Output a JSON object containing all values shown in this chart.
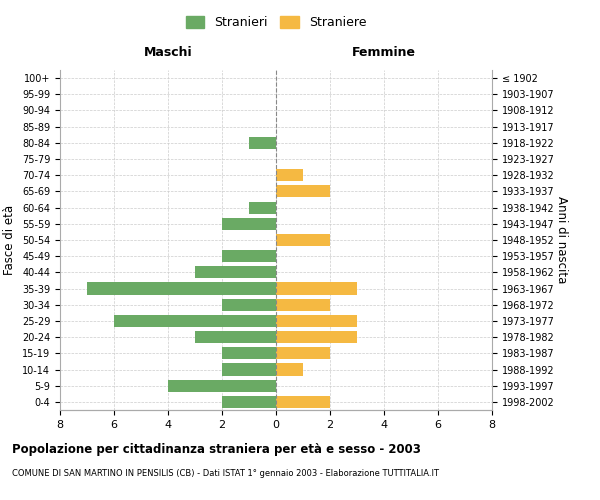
{
  "age_groups": [
    "0-4",
    "5-9",
    "10-14",
    "15-19",
    "20-24",
    "25-29",
    "30-34",
    "35-39",
    "40-44",
    "45-49",
    "50-54",
    "55-59",
    "60-64",
    "65-69",
    "70-74",
    "75-79",
    "80-84",
    "85-89",
    "90-94",
    "95-99",
    "100+"
  ],
  "birth_years": [
    "1998-2002",
    "1993-1997",
    "1988-1992",
    "1983-1987",
    "1978-1982",
    "1973-1977",
    "1968-1972",
    "1963-1967",
    "1958-1962",
    "1953-1957",
    "1948-1952",
    "1943-1947",
    "1938-1942",
    "1933-1937",
    "1928-1932",
    "1923-1927",
    "1918-1922",
    "1913-1917",
    "1908-1912",
    "1903-1907",
    "≤ 1902"
  ],
  "males": [
    2,
    4,
    2,
    2,
    3,
    6,
    2,
    7,
    3,
    2,
    0,
    2,
    1,
    0,
    0,
    0,
    1,
    0,
    0,
    0,
    0
  ],
  "females": [
    2,
    0,
    1,
    2,
    3,
    3,
    2,
    3,
    0,
    0,
    2,
    0,
    0,
    2,
    1,
    0,
    0,
    0,
    0,
    0,
    0
  ],
  "male_color": "#6aaa64",
  "female_color": "#f5b942",
  "xlim": 8,
  "title": "Popolazione per cittadinanza straniera per età e sesso - 2003",
  "subtitle": "COMUNE DI SAN MARTINO IN PENSILIS (CB) - Dati ISTAT 1° gennaio 2003 - Elaborazione TUTTITALIA.IT",
  "ylabel_left": "Fasce di età",
  "ylabel_right": "Anni di nascita",
  "xlabel_left": "Maschi",
  "xlabel_right": "Femmine",
  "legend_male": "Stranieri",
  "legend_female": "Straniere",
  "background_color": "#ffffff",
  "grid_color": "#cccccc"
}
